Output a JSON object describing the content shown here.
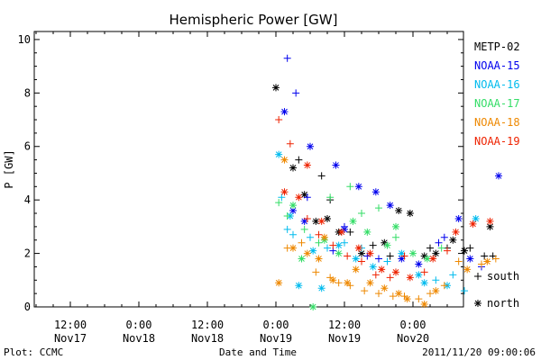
{
  "chart_data": {
    "type": "scatter",
    "title": "Hemispheric Power [GW]",
    "xlabel": "Date and Time",
    "ylabel": "P [GW]",
    "ylim": [
      0,
      10.3
    ],
    "xlim": [
      "2011-11-17 06:00",
      "2011-11-20 18:00"
    ],
    "yticks": [
      0,
      2,
      4,
      6,
      8,
      10
    ],
    "xticks": [
      {
        "x": "2011-11-17 12:00",
        "time": "12:00",
        "date": "Nov17"
      },
      {
        "x": "2011-11-18 00:00",
        "time": "0:00",
        "date": "Nov18"
      },
      {
        "x": "2011-11-18 12:00",
        "time": "12:00",
        "date": "Nov18"
      },
      {
        "x": "2011-11-19 00:00",
        "time": "0:00",
        "date": "Nov19"
      },
      {
        "x": "2011-11-19 12:00",
        "time": "12:00",
        "date": "Nov19"
      },
      {
        "x": "2011-11-20 00:00",
        "time": "0:00",
        "date": "Nov20"
      }
    ],
    "grid": false,
    "legend_position": "right",
    "marker_legend": [
      {
        "symbol": "+",
        "label": "south"
      },
      {
        "symbol": "*",
        "label": "north"
      }
    ],
    "series": [
      {
        "name": "METP-02",
        "color": "#000000",
        "south": [
          [
            "2011-11-19 04:00",
            5.5
          ],
          [
            "2011-11-19 08:00",
            4.9
          ],
          [
            "2011-11-19 09:30",
            4.0
          ],
          [
            "2011-11-19 13:00",
            2.8
          ],
          [
            "2011-11-19 17:00",
            2.3
          ],
          [
            "2011-11-19 20:00",
            1.9
          ],
          [
            "2011-11-20 03:00",
            2.2
          ],
          [
            "2011-11-20 06:00",
            2.2
          ],
          [
            "2011-11-20 10:00",
            2.2
          ],
          [
            "2011-11-20 12:30",
            1.9
          ],
          [
            "2011-11-20 14:00",
            1.9
          ]
        ],
        "north": [
          [
            "2011-11-19 00:00",
            8.2
          ],
          [
            "2011-11-19 03:00",
            5.2
          ],
          [
            "2011-11-19 05:00",
            4.2
          ],
          [
            "2011-11-19 07:00",
            3.2
          ],
          [
            "2011-11-19 09:00",
            3.3
          ],
          [
            "2011-11-19 11:00",
            2.8
          ],
          [
            "2011-11-19 15:00",
            2.0
          ],
          [
            "2011-11-19 19:00",
            2.4
          ],
          [
            "2011-11-19 21:30",
            3.6
          ],
          [
            "2011-11-19 23:30",
            3.5
          ],
          [
            "2011-11-20 02:00",
            1.9
          ],
          [
            "2011-11-20 04:00",
            2.0
          ],
          [
            "2011-11-20 07:00",
            2.5
          ],
          [
            "2011-11-20 09:00",
            2.1
          ],
          [
            "2011-11-20 13:30",
            3.0
          ]
        ]
      },
      {
        "name": "NOAA-15",
        "color": "#0000ee",
        "south": [
          [
            "2011-11-19 02:00",
            9.3
          ],
          [
            "2011-11-19 03:30",
            8.0
          ],
          [
            "2011-11-19 05:30",
            4.1
          ],
          [
            "2011-11-19 10:00",
            2.1
          ],
          [
            "2011-11-19 12:00",
            3.0
          ],
          [
            "2011-11-19 16:00",
            1.9
          ],
          [
            "2011-11-19 18:00",
            1.8
          ],
          [
            "2011-11-20 04:30",
            2.4
          ],
          [
            "2011-11-20 05:30",
            2.6
          ],
          [
            "2011-11-20 12:00",
            1.5
          ]
        ],
        "north": [
          [
            "2011-11-19 01:30",
            7.3
          ],
          [
            "2011-11-19 03:00",
            3.6
          ],
          [
            "2011-11-19 05:00",
            3.2
          ],
          [
            "2011-11-19 06:00",
            6.0
          ],
          [
            "2011-11-19 10:30",
            5.3
          ],
          [
            "2011-11-19 12:00",
            2.9
          ],
          [
            "2011-11-19 14:30",
            4.5
          ],
          [
            "2011-11-19 17:30",
            4.3
          ],
          [
            "2011-11-19 20:00",
            3.8
          ],
          [
            "2011-11-19 22:00",
            1.8
          ],
          [
            "2011-11-20 01:00",
            1.6
          ],
          [
            "2011-11-20 08:00",
            3.3
          ],
          [
            "2011-11-20 10:00",
            1.8
          ],
          [
            "2011-11-20 15:00",
            4.9
          ]
        ]
      },
      {
        "name": "NOAA-16",
        "color": "#00bbee",
        "south": [
          [
            "2011-11-19 01:00",
            4.1
          ],
          [
            "2011-11-19 02:00",
            2.9
          ],
          [
            "2011-11-19 03:00",
            2.7
          ],
          [
            "2011-11-19 06:00",
            2.6
          ],
          [
            "2011-11-19 09:00",
            2.2
          ],
          [
            "2011-11-19 12:00",
            2.4
          ],
          [
            "2011-11-19 15:00",
            2.2
          ],
          [
            "2011-11-19 19:30",
            1.7
          ],
          [
            "2011-11-20 04:00",
            1.0
          ],
          [
            "2011-11-20 07:00",
            1.2
          ],
          [
            "2011-11-20 09:00",
            0.6
          ]
        ],
        "north": [
          [
            "2011-11-19 00:30",
            5.7
          ],
          [
            "2011-11-19 02:30",
            3.4
          ],
          [
            "2011-11-19 04:00",
            0.8
          ],
          [
            "2011-11-19 06:30",
            2.1
          ],
          [
            "2011-11-19 08:00",
            0.7
          ],
          [
            "2011-11-19 11:00",
            2.3
          ],
          [
            "2011-11-19 14:00",
            1.8
          ],
          [
            "2011-11-19 17:00",
            1.5
          ],
          [
            "2011-11-19 22:00",
            2.0
          ],
          [
            "2011-11-20 01:00",
            1.2
          ],
          [
            "2011-11-20 02:00",
            0.9
          ],
          [
            "2011-11-20 06:00",
            0.8
          ],
          [
            "2011-11-20 11:00",
            3.3
          ]
        ]
      },
      {
        "name": "NOAA-17",
        "color": "#33dd66",
        "south": [
          [
            "2011-11-19 00:30",
            3.9
          ],
          [
            "2011-11-19 02:00",
            3.4
          ],
          [
            "2011-11-19 05:00",
            2.9
          ],
          [
            "2011-11-19 07:30",
            2.4
          ],
          [
            "2011-11-19 09:30",
            4.1
          ],
          [
            "2011-11-19 13:00",
            4.5
          ],
          [
            "2011-11-19 15:00",
            3.5
          ],
          [
            "2011-11-19 18:00",
            3.7
          ],
          [
            "2011-11-19 21:00",
            2.6
          ],
          [
            "2011-11-20 05:00",
            2.2
          ]
        ],
        "north": [
          [
            "2011-11-19 03:00",
            3.8
          ],
          [
            "2011-11-19 04:30",
            1.8
          ],
          [
            "2011-11-19 06:30",
            0.0
          ],
          [
            "2011-11-19 08:30",
            2.5
          ],
          [
            "2011-11-19 11:00",
            2.0
          ],
          [
            "2011-11-19 13:30",
            3.2
          ],
          [
            "2011-11-19 16:00",
            2.8
          ],
          [
            "2011-11-19 19:30",
            2.3
          ],
          [
            "2011-11-19 21:00",
            3.0
          ],
          [
            "2011-11-20 00:00",
            2.0
          ],
          [
            "2011-11-20 02:30",
            1.8
          ]
        ]
      },
      {
        "name": "NOAA-18",
        "color": "#ee8800",
        "south": [
          [
            "2011-11-19 02:00",
            2.2
          ],
          [
            "2011-11-19 04:30",
            2.4
          ],
          [
            "2011-11-19 07:00",
            1.3
          ],
          [
            "2011-11-19 09:30",
            1.1
          ],
          [
            "2011-11-19 11:00",
            0.9
          ],
          [
            "2011-11-19 13:00",
            0.8
          ],
          [
            "2011-11-19 15:30",
            0.6
          ],
          [
            "2011-11-19 18:00",
            0.5
          ],
          [
            "2011-11-19 20:30",
            0.4
          ],
          [
            "2011-11-19 22:30",
            0.4
          ],
          [
            "2011-11-20 01:00",
            0.3
          ],
          [
            "2011-11-20 03:00",
            0.5
          ],
          [
            "2011-11-20 05:30",
            0.8
          ],
          [
            "2011-11-20 08:00",
            1.7
          ],
          [
            "2011-11-20 12:00",
            1.6
          ],
          [
            "2011-11-20 14:30",
            1.8
          ]
        ],
        "north": [
          [
            "2011-11-19 00:30",
            0.9
          ],
          [
            "2011-11-19 01:30",
            5.5
          ],
          [
            "2011-11-19 03:00",
            2.2
          ],
          [
            "2011-11-19 05:30",
            2.0
          ],
          [
            "2011-11-19 07:30",
            1.8
          ],
          [
            "2011-11-19 08:30",
            2.6
          ],
          [
            "2011-11-19 10:00",
            1.0
          ],
          [
            "2011-11-19 12:30",
            0.9
          ],
          [
            "2011-11-19 14:00",
            1.4
          ],
          [
            "2011-11-19 16:30",
            0.9
          ],
          [
            "2011-11-19 19:00",
            0.7
          ],
          [
            "2011-11-19 21:30",
            0.5
          ],
          [
            "2011-11-19 23:00",
            0.3
          ],
          [
            "2011-11-20 02:00",
            0.1
          ],
          [
            "2011-11-20 04:00",
            0.6
          ],
          [
            "2011-11-20 09:30",
            1.4
          ],
          [
            "2011-11-20 13:00",
            1.7
          ]
        ]
      },
      {
        "name": "NOAA-19",
        "color": "#ee2200",
        "south": [
          [
            "2011-11-19 00:30",
            7.0
          ],
          [
            "2011-11-19 02:30",
            6.1
          ],
          [
            "2011-11-19 05:30",
            3.3
          ],
          [
            "2011-11-19 07:30",
            2.7
          ],
          [
            "2011-11-19 10:00",
            2.3
          ],
          [
            "2011-11-19 12:30",
            1.9
          ],
          [
            "2011-11-19 15:00",
            1.7
          ],
          [
            "2011-11-19 17:30",
            1.2
          ],
          [
            "2011-11-19 20:00",
            1.1
          ],
          [
            "2011-11-19 22:30",
            1.9
          ],
          [
            "2011-11-20 02:00",
            1.3
          ],
          [
            "2011-11-20 06:00",
            2.1
          ]
        ],
        "north": [
          [
            "2011-11-19 01:30",
            4.3
          ],
          [
            "2011-11-19 04:00",
            4.1
          ],
          [
            "2011-11-19 05:30",
            5.3
          ],
          [
            "2011-11-19 08:00",
            3.2
          ],
          [
            "2011-11-19 11:30",
            2.8
          ],
          [
            "2011-11-19 14:30",
            2.2
          ],
          [
            "2011-11-19 16:30",
            2.0
          ],
          [
            "2011-11-19 18:30",
            1.4
          ],
          [
            "2011-11-19 21:00",
            1.3
          ],
          [
            "2011-11-19 23:30",
            1.1
          ],
          [
            "2011-11-20 03:30",
            1.8
          ],
          [
            "2011-11-20 07:30",
            2.8
          ],
          [
            "2011-11-20 10:30",
            3.1
          ],
          [
            "2011-11-20 13:30",
            3.2
          ]
        ]
      }
    ]
  },
  "footer": {
    "plot_label": "Plot: CCMC",
    "timestamp": "2011/11/20 09:00:06"
  }
}
